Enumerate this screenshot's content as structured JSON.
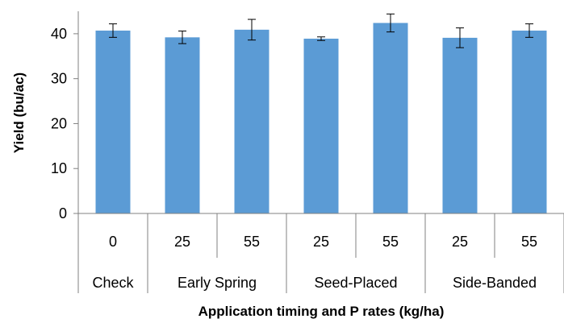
{
  "chart_data": {
    "type": "bar",
    "title": "",
    "xlabel": "Application timing and P rates (kg/ha)",
    "ylabel": "Yield (bu/ac)",
    "ylim": [
      0,
      45
    ],
    "yticks": [
      0,
      10,
      20,
      30,
      40
    ],
    "grid": false,
    "legend": "none",
    "bar_color": "#5B9BD5",
    "categories": [
      "0",
      "25",
      "55",
      "25",
      "55",
      "25",
      "55"
    ],
    "groups": [
      {
        "label": "Check",
        "span": 1
      },
      {
        "label": "Early Spring",
        "span": 2
      },
      {
        "label": "Seed-Placed",
        "span": 2
      },
      {
        "label": "Side-Banded",
        "span": 2
      }
    ],
    "values": [
      40.7,
      39.2,
      40.9,
      38.9,
      42.4,
      39.1,
      40.7
    ],
    "error": [
      1.5,
      1.4,
      2.3,
      0.4,
      2.0,
      2.2,
      1.5
    ]
  }
}
